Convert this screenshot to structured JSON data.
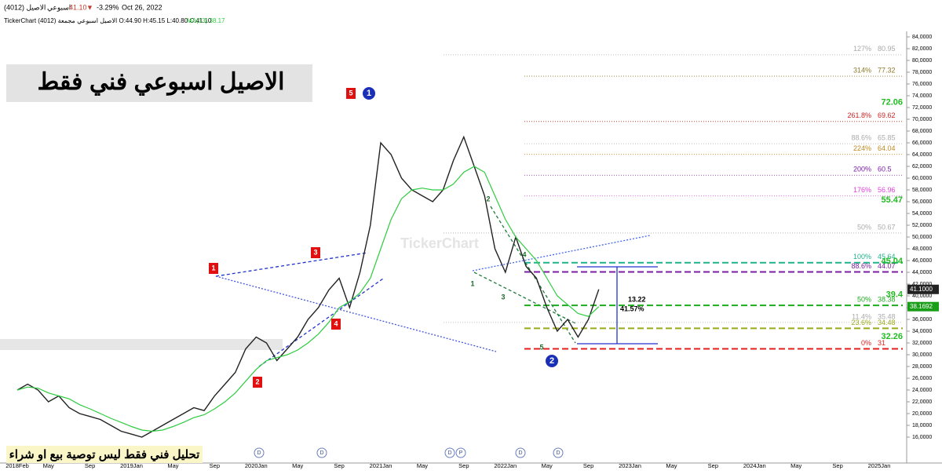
{
  "header": {
    "symbol": "الاصيل (4012)",
    "period": "اسبوعي",
    "last": "41.10",
    "arrow": "▼",
    "change": "-3.29%",
    "date": "Oct 26, 2022",
    "info": "TickerChart الاصيل اسبوعي مجمعة (4012) O:44.90 H:45.15 L:40.80 C:41.10",
    "ma_info": "MA(13) 38.17"
  },
  "chart_data": {
    "type": "line",
    "title": "الاصيل اسبوعي  فني فقط",
    "disclaimer": "تحليل فني فقط ليس توصية بيع او شراء",
    "watermark": "TickerChart",
    "categories": [
      "2018Feb",
      null,
      null,
      "May",
      null,
      null,
      null,
      "Sep",
      null,
      null,
      null,
      "2019Jan",
      null,
      null,
      null,
      "May",
      null,
      null,
      null,
      "Sep",
      null,
      null,
      null,
      "2020Jan",
      null,
      null,
      null,
      "May",
      null,
      null,
      null,
      "Sep",
      null,
      null,
      null,
      "2021Jan",
      null,
      null,
      null,
      "May",
      null,
      null,
      null,
      "Sep",
      null,
      null,
      null,
      "2022Jan",
      null,
      null,
      null,
      "May",
      null,
      null,
      null,
      "Sep",
      null,
      null,
      null,
      "2023Jan",
      null,
      null,
      null,
      "May",
      null,
      null,
      null,
      "Sep",
      null,
      null,
      null,
      "2024Jan",
      null,
      null,
      null,
      "May",
      null,
      null,
      null,
      "Sep",
      null,
      null,
      null,
      "2025Jan"
    ],
    "series": [
      {
        "name": "الاصيل (4012)",
        "color": "#222222",
        "values": [
          24,
          25,
          24,
          22,
          23,
          21,
          20,
          19.5,
          19,
          18,
          17,
          16.5,
          16,
          17,
          18,
          19,
          20,
          21,
          20.5,
          23,
          25,
          27,
          31,
          33,
          32,
          29,
          31,
          33,
          36,
          38,
          41,
          43,
          38,
          44,
          52,
          66,
          64,
          60,
          58,
          57,
          56,
          58,
          63,
          67,
          62,
          57,
          48,
          44,
          50,
          45,
          43,
          38,
          34,
          36,
          33,
          36,
          41.1,
          null,
          null,
          null,
          null,
          null,
          null,
          null,
          null,
          null,
          null,
          null,
          null,
          null,
          null,
          null,
          null,
          null,
          null,
          null,
          null,
          null,
          null,
          null,
          null,
          null,
          null,
          null
        ]
      },
      {
        "name": "MA(13)",
        "color": "#2ecc40",
        "values": [
          24,
          24.5,
          24.3,
          23.5,
          23,
          22.5,
          21.5,
          20.8,
          20,
          19.2,
          18.5,
          17.8,
          17.2,
          17,
          17.2,
          17.8,
          18.5,
          19.3,
          19.8,
          20.8,
          22,
          23.5,
          25.5,
          27.5,
          29,
          29.5,
          30,
          30.8,
          32,
          33.5,
          35.5,
          38,
          39,
          40.5,
          43,
          48,
          53,
          56.5,
          58,
          58.3,
          58,
          58,
          59,
          61,
          62,
          61,
          57,
          53,
          50,
          48,
          46,
          43,
          40,
          38.5,
          37,
          36.5,
          38.17,
          null,
          null,
          null,
          null,
          null,
          null,
          null,
          null,
          null,
          null,
          null,
          null,
          null,
          null,
          null,
          null,
          null,
          null,
          null,
          null,
          null,
          null,
          null,
          null,
          null,
          null,
          null
        ]
      }
    ],
    "ylim": [
      11.6,
      84.93
    ],
    "yticks": [
      {
        "value": 16,
        "label": "16,0000"
      },
      {
        "value": 18,
        "label": "18,0000"
      },
      {
        "value": 20,
        "label": "20,0000"
      },
      {
        "value": 22,
        "label": "22,0000"
      },
      {
        "value": 24,
        "label": "24,0000"
      },
      {
        "value": 26,
        "label": "26,0000"
      },
      {
        "value": 28,
        "label": "28,0000"
      },
      {
        "value": 30,
        "label": "30,0000"
      },
      {
        "value": 32,
        "label": "32,0000"
      },
      {
        "value": 34,
        "label": "34,0000"
      },
      {
        "value": 36,
        "label": "36,0000"
      },
      {
        "value": 38,
        "label": "38,0000"
      },
      {
        "value": 40,
        "label": "40,0000"
      },
      {
        "value": 42,
        "label": "42,0000"
      },
      {
        "value": 44,
        "label": "44,0000"
      },
      {
        "value": 46,
        "label": "46,0000"
      },
      {
        "value": 48,
        "label": "48,0000"
      },
      {
        "value": 50,
        "label": "50,0000"
      },
      {
        "value": 52,
        "label": "52,0000"
      },
      {
        "value": 54,
        "label": "54,0000"
      },
      {
        "value": 56,
        "label": "56,0000"
      },
      {
        "value": 58,
        "label": "58,0000"
      },
      {
        "value": 60,
        "label": "60,0000"
      },
      {
        "value": 62,
        "label": "62,0000"
      },
      {
        "value": 64,
        "label": "64,0000"
      },
      {
        "value": 66,
        "label": "66,0000"
      },
      {
        "value": 68,
        "label": "68,0000"
      },
      {
        "value": 70,
        "label": "70,0000"
      },
      {
        "value": 72,
        "label": "72,0000"
      },
      {
        "value": 74,
        "label": "74,0000"
      },
      {
        "value": 76,
        "label": "76,0000"
      },
      {
        "value": 78,
        "label": "78,0000"
      },
      {
        "value": 80,
        "label": "80,0000"
      },
      {
        "value": 82,
        "label": "82,0000"
      },
      {
        "value": 84,
        "label": "84,0000"
      }
    ],
    "levels": [
      {
        "percent": "127%",
        "value": 80.95,
        "color": "#aaaaaa",
        "dashed": false
      },
      {
        "percent": "314%",
        "value": 77.32,
        "color": "#8b7a2a",
        "dashed": false
      },
      {
        "percent": "261.8%",
        "value": 69.62,
        "color": "#cc2222",
        "dashed": false
      },
      {
        "percent": "88.6%",
        "value": 65.85,
        "color": "#aaaaaa",
        "dashed": false
      },
      {
        "percent": "224%",
        "value": 64.04,
        "color": "#c08a20",
        "dashed": false
      },
      {
        "percent": "200%",
        "value": 60.5,
        "color": "#7b1fa2",
        "dashed": false
      },
      {
        "percent": "176%",
        "value": 56.96,
        "color": "#e040e0",
        "dashed": false
      },
      {
        "percent": "50%",
        "value": 50.67,
        "color": "#aaaaaa",
        "dashed": false
      },
      {
        "percent": "100%",
        "value": 45.64,
        "color": "#20b28a",
        "dashed": true
      },
      {
        "percent": "88.6%",
        "value": 44.07,
        "color": "#7b1fa2",
        "dashed": true
      },
      {
        "percent": "50%",
        "value": 38.38,
        "color": "#1faa1f",
        "dashed": true
      },
      {
        "percent": "11.4%",
        "value": 35.48,
        "color": "#aaaaaa",
        "dashed": false
      },
      {
        "percent": "23.6%",
        "value": 34.48,
        "color": "#9aaa1a",
        "dashed": true
      },
      {
        "percent": "0%",
        "value": 31.0,
        "color": "#e02020",
        "dashed": true
      }
    ],
    "price_labels": [
      72.06,
      55.47,
      45.04,
      39.4,
      32.26
    ],
    "price_tags": [
      {
        "value": 41.1,
        "label": "41.1000",
        "color": "#222222"
      },
      {
        "value": 38.1692,
        "label": "38.1692",
        "color": "#1a9e1a"
      }
    ],
    "measure": {
      "change": 13.22,
      "percent": "41.57%"
    },
    "waves": {
      "red": [
        "1",
        "2",
        "3",
        "4",
        "5"
      ],
      "circle": [
        "1",
        "2"
      ],
      "green": [
        "1",
        "2",
        "3",
        "4",
        "5"
      ]
    },
    "event_markers": [
      "D",
      "P"
    ]
  }
}
